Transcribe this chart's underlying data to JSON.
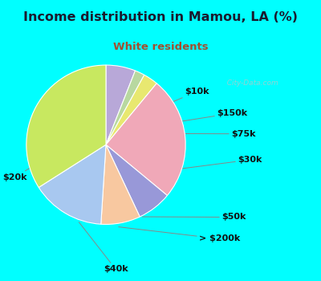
{
  "title": "Income distribution in Mamou, LA (%)",
  "subtitle": "White residents",
  "title_color": "#1a1a2e",
  "subtitle_color": "#a05030",
  "bg_cyan": "#00ffff",
  "bg_chart": "#e8f5ee",
  "labels": [
    "$10k",
    "$150k",
    "$75k",
    "$30k",
    "$50k",
    "> $200k",
    "$40k",
    "$20k"
  ],
  "sizes": [
    6,
    2,
    3,
    25,
    7,
    8,
    15,
    34
  ],
  "colors": [
    "#b8a8d8",
    "#b8d8a0",
    "#e8e870",
    "#f0a8b8",
    "#9898d8",
    "#f8c8a0",
    "#a8c8f0",
    "#c8e860"
  ],
  "startangle": 90,
  "counterclock": false
}
